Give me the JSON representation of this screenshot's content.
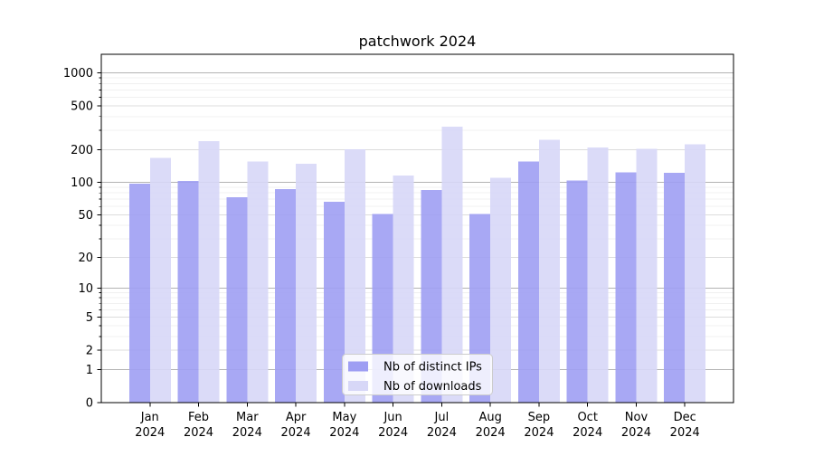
{
  "chart_data": {
    "type": "bar",
    "title": "patchwork 2024",
    "yscale": "log1p",
    "ylim": [
      0,
      1477
    ],
    "grid": "both",
    "legend_position": "lower center",
    "categories": [
      {
        "month": "Jan",
        "year": "2024"
      },
      {
        "month": "Feb",
        "year": "2024"
      },
      {
        "month": "Mar",
        "year": "2024"
      },
      {
        "month": "Apr",
        "year": "2024"
      },
      {
        "month": "May",
        "year": "2024"
      },
      {
        "month": "Jun",
        "year": "2024"
      },
      {
        "month": "Jul",
        "year": "2024"
      },
      {
        "month": "Aug",
        "year": "2024"
      },
      {
        "month": "Sep",
        "year": "2024"
      },
      {
        "month": "Oct",
        "year": "2024"
      },
      {
        "month": "Nov",
        "year": "2024"
      },
      {
        "month": "Dec",
        "year": "2024"
      }
    ],
    "series": [
      {
        "name": "Nb of distinct IPs",
        "color": "#9e9ef3",
        "values": [
          97,
          103,
          73,
          87,
          66,
          51,
          85,
          51,
          155,
          104,
          124,
          122
        ]
      },
      {
        "name": "Nb of downloads",
        "color": "#d7d7f7",
        "values": [
          168,
          238,
          155,
          148,
          201,
          116,
          324,
          110,
          245,
          208,
          202,
          224
        ]
      }
    ],
    "yticks": [
      0,
      1,
      2,
      5,
      10,
      20,
      50,
      100,
      200,
      500,
      1000
    ],
    "ytick_labels": [
      "0",
      "1",
      "2",
      "5",
      "10",
      "20",
      "50",
      "100",
      "200",
      "500",
      "1000"
    ],
    "yticks_minor": [
      3,
      4,
      6,
      7,
      8,
      9,
      30,
      40,
      60,
      70,
      80,
      90,
      300,
      400,
      600,
      700,
      800,
      900
    ],
    "colors": {
      "grid_decade": "#b3b3b3",
      "grid_major": "#dcdcdc",
      "grid_minor": "#f0f0f0",
      "spine": "#000000",
      "legend_border": "#cccccc"
    }
  }
}
